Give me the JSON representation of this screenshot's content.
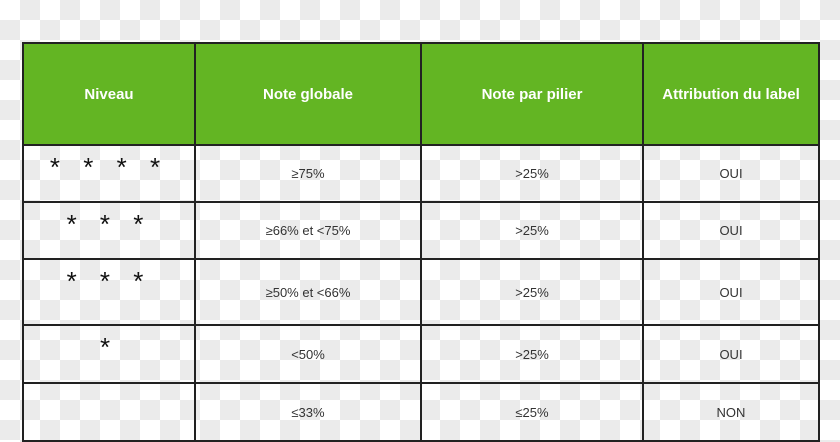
{
  "colors": {
    "header_bg": "#63b523",
    "header_text": "#ffffff",
    "border": "#222222"
  },
  "headers": [
    "Niveau",
    "Note globale",
    "Note par pilier",
    "Attribution du label"
  ],
  "rows": [
    {
      "niveau": "* * * *",
      "globale": "≥75%",
      "pilier": ">25%",
      "label": "OUI"
    },
    {
      "niveau": "* * *",
      "globale": "≥66% et <75%",
      "pilier": ">25%",
      "label": "OUI"
    },
    {
      "niveau": "* * *",
      "globale": "≥50% et <66%",
      "pilier": ">25%",
      "label": "OUI"
    },
    {
      "niveau": "*",
      "globale": "<50%",
      "pilier": ">25%",
      "label": "OUI"
    },
    {
      "niveau": "",
      "globale": "≤33%",
      "pilier": "≤25%",
      "label": "NON"
    }
  ]
}
